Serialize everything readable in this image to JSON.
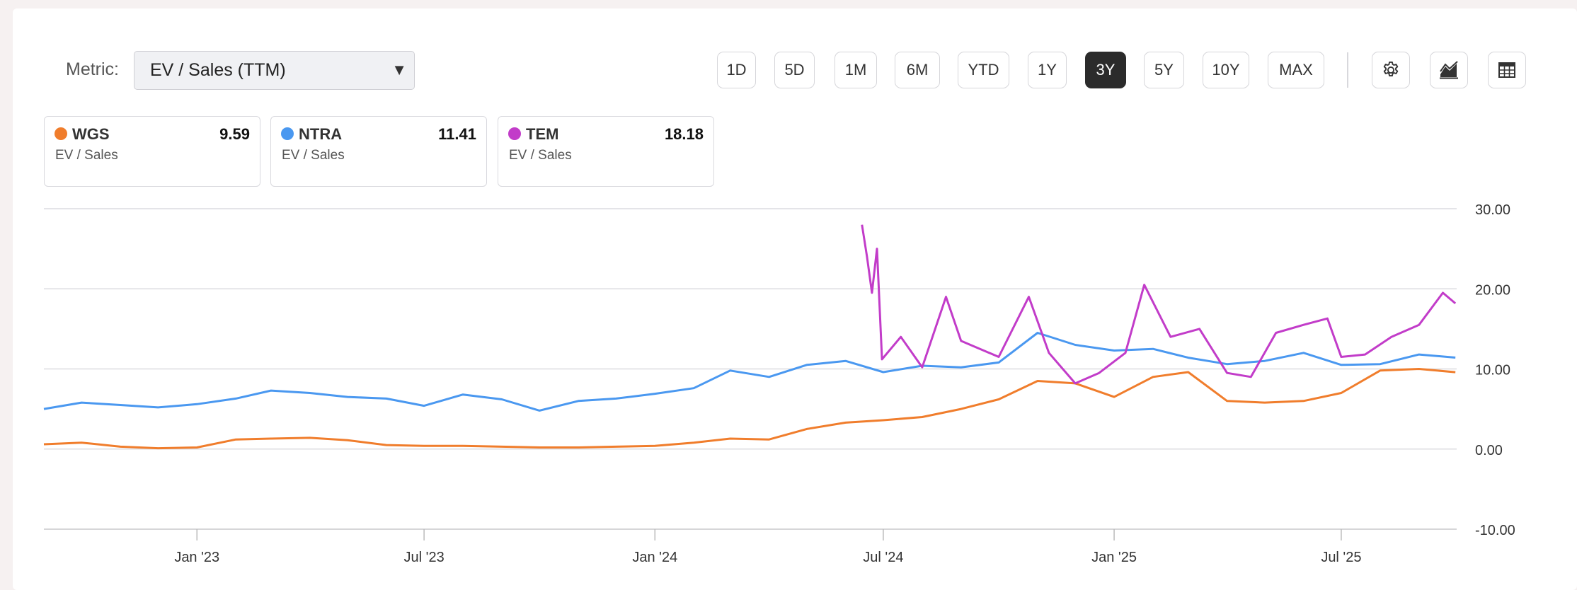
{
  "metric": {
    "label": "Metric:",
    "selected": "EV / Sales (TTM)"
  },
  "ranges": [
    "1D",
    "5D",
    "1M",
    "6M",
    "YTD",
    "1Y",
    "3Y",
    "5Y",
    "10Y",
    "MAX"
  ],
  "active_range": "3Y",
  "tool_icons": [
    "gear-icon",
    "area-chart-icon",
    "table-icon"
  ],
  "legend": [
    {
      "ticker": "WGS",
      "value": "9.59",
      "sub": "EV / Sales",
      "color": "#f07d2c"
    },
    {
      "ticker": "NTRA",
      "value": "11.41",
      "sub": "EV / Sales",
      "color": "#4a98f0"
    },
    {
      "ticker": "TEM",
      "value": "18.18",
      "sub": "EV / Sales",
      "color": "#c23cc9"
    }
  ],
  "chart_data": {
    "type": "line",
    "title": "",
    "xlabel": "",
    "ylabel": "",
    "ylim": [
      -10,
      30
    ],
    "xlim": [
      "2022-09-01",
      "2025-10-01"
    ],
    "y_ticks": [
      "30.00",
      "20.00",
      "10.00",
      "0.00",
      "-10.00"
    ],
    "y_tick_values": [
      30,
      20,
      10,
      0,
      -10
    ],
    "x_ticks": [
      "Jan '23",
      "Jul '23",
      "Jan '24",
      "Jul '24",
      "Jan '25",
      "Jul '25"
    ],
    "x_tick_dates": [
      "2023-01-01",
      "2023-07-01",
      "2024-01-01",
      "2024-07-01",
      "2025-01-01",
      "2025-07-01"
    ],
    "grid": true,
    "series": [
      {
        "name": "WGS",
        "color": "#f07d2c",
        "points": [
          [
            "2022-09-01",
            0.6
          ],
          [
            "2022-10-01",
            0.8
          ],
          [
            "2022-11-01",
            0.3
          ],
          [
            "2022-12-01",
            0.1
          ],
          [
            "2023-01-01",
            0.2
          ],
          [
            "2023-02-01",
            1.2
          ],
          [
            "2023-03-01",
            1.3
          ],
          [
            "2023-04-01",
            1.4
          ],
          [
            "2023-05-01",
            1.1
          ],
          [
            "2023-06-01",
            0.5
          ],
          [
            "2023-07-01",
            0.4
          ],
          [
            "2023-08-01",
            0.4
          ],
          [
            "2023-09-01",
            0.3
          ],
          [
            "2023-10-01",
            0.2
          ],
          [
            "2023-11-01",
            0.2
          ],
          [
            "2023-12-01",
            0.3
          ],
          [
            "2024-01-01",
            0.4
          ],
          [
            "2024-02-01",
            0.8
          ],
          [
            "2024-03-01",
            1.3
          ],
          [
            "2024-04-01",
            1.2
          ],
          [
            "2024-05-01",
            2.5
          ],
          [
            "2024-06-01",
            3.3
          ],
          [
            "2024-07-01",
            3.6
          ],
          [
            "2024-08-01",
            4.0
          ],
          [
            "2024-09-01",
            5.0
          ],
          [
            "2024-10-01",
            6.2
          ],
          [
            "2024-11-01",
            8.5
          ],
          [
            "2024-12-01",
            8.2
          ],
          [
            "2025-01-01",
            6.5
          ],
          [
            "2025-02-01",
            9.0
          ],
          [
            "2025-03-01",
            9.6
          ],
          [
            "2025-04-01",
            6.0
          ],
          [
            "2025-05-01",
            5.8
          ],
          [
            "2025-06-01",
            6.0
          ],
          [
            "2025-07-01",
            7.0
          ],
          [
            "2025-08-01",
            9.8
          ],
          [
            "2025-09-01",
            10.0
          ],
          [
            "2025-09-30",
            9.59
          ]
        ]
      },
      {
        "name": "NTRA",
        "color": "#4a98f0",
        "points": [
          [
            "2022-09-01",
            5.0
          ],
          [
            "2022-10-01",
            5.8
          ],
          [
            "2022-11-01",
            5.5
          ],
          [
            "2022-12-01",
            5.2
          ],
          [
            "2023-01-01",
            5.6
          ],
          [
            "2023-02-01",
            6.3
          ],
          [
            "2023-03-01",
            7.3
          ],
          [
            "2023-04-01",
            7.0
          ],
          [
            "2023-05-01",
            6.5
          ],
          [
            "2023-06-01",
            6.3
          ],
          [
            "2023-07-01",
            5.4
          ],
          [
            "2023-08-01",
            6.8
          ],
          [
            "2023-09-01",
            6.2
          ],
          [
            "2023-10-01",
            4.8
          ],
          [
            "2023-11-01",
            6.0
          ],
          [
            "2023-12-01",
            6.3
          ],
          [
            "2024-01-01",
            6.9
          ],
          [
            "2024-02-01",
            7.6
          ],
          [
            "2024-03-01",
            9.8
          ],
          [
            "2024-04-01",
            9.0
          ],
          [
            "2024-05-01",
            10.5
          ],
          [
            "2024-06-01",
            11.0
          ],
          [
            "2024-07-01",
            9.6
          ],
          [
            "2024-08-01",
            10.4
          ],
          [
            "2024-09-01",
            10.2
          ],
          [
            "2024-10-01",
            10.8
          ],
          [
            "2024-11-01",
            14.5
          ],
          [
            "2024-12-01",
            13.0
          ],
          [
            "2025-01-01",
            12.3
          ],
          [
            "2025-02-01",
            12.5
          ],
          [
            "2025-03-01",
            11.4
          ],
          [
            "2025-04-01",
            10.6
          ],
          [
            "2025-05-01",
            11.0
          ],
          [
            "2025-06-01",
            12.0
          ],
          [
            "2025-07-01",
            10.5
          ],
          [
            "2025-08-01",
            10.6
          ],
          [
            "2025-09-01",
            11.8
          ],
          [
            "2025-09-30",
            11.41
          ]
        ]
      },
      {
        "name": "TEM",
        "color": "#c23cc9",
        "points": [
          [
            "2024-06-14",
            28.0
          ],
          [
            "2024-06-18",
            24.0
          ],
          [
            "2024-06-22",
            19.5
          ],
          [
            "2024-06-26",
            25.0
          ],
          [
            "2024-06-30",
            11.2
          ],
          [
            "2024-07-15",
            14.0
          ],
          [
            "2024-08-01",
            10.2
          ],
          [
            "2024-08-20",
            19.0
          ],
          [
            "2024-09-01",
            13.5
          ],
          [
            "2024-10-01",
            11.5
          ],
          [
            "2024-10-25",
            19.0
          ],
          [
            "2024-11-10",
            12.0
          ],
          [
            "2024-12-01",
            8.2
          ],
          [
            "2024-12-20",
            9.5
          ],
          [
            "2025-01-10",
            12.0
          ],
          [
            "2025-01-25",
            20.5
          ],
          [
            "2025-02-15",
            14.0
          ],
          [
            "2025-03-10",
            15.0
          ],
          [
            "2025-04-01",
            9.5
          ],
          [
            "2025-04-20",
            9.0
          ],
          [
            "2025-05-10",
            14.5
          ],
          [
            "2025-06-01",
            15.5
          ],
          [
            "2025-06-20",
            16.3
          ],
          [
            "2025-07-01",
            11.5
          ],
          [
            "2025-07-20",
            11.8
          ],
          [
            "2025-08-10",
            14.0
          ],
          [
            "2025-09-01",
            15.5
          ],
          [
            "2025-09-20",
            19.5
          ],
          [
            "2025-09-30",
            18.18
          ]
        ]
      }
    ]
  }
}
